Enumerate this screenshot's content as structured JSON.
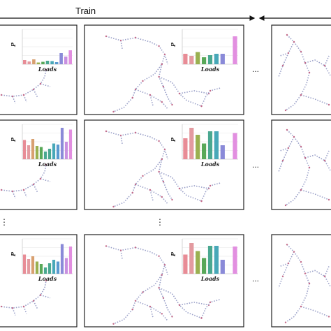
{
  "header": {
    "title": "Train"
  },
  "axis_labels": {
    "y": "P",
    "x": "Loads"
  },
  "ellipsis": "...",
  "vertical_ellipsis": "⋮",
  "colors": {
    "frame": "#222222",
    "arrow": "#111111",
    "network_edge": "#9aa0c8",
    "network_node": "#c46b8a",
    "bar_palette": [
      "#e88c96",
      "#e39aa0",
      "#d8a070",
      "#9ab050",
      "#58a858",
      "#4aa890",
      "#48a8b8",
      "#5a9ad0",
      "#8a8ad8",
      "#c890e0",
      "#e28fe0"
    ]
  },
  "panels": [
    {
      "id": "r1c1",
      "bars": [
        0.12,
        0.08,
        0.14,
        0.05,
        0.07,
        0.1,
        0.09,
        0.06,
        0.32,
        0.22,
        0.4
      ]
    },
    {
      "id": "r1c2",
      "bars": [
        0.3,
        0.24,
        0.35,
        0.2,
        0.26,
        0.3,
        0.3,
        0.0,
        0.8
      ]
    },
    {
      "id": "r1c3",
      "bars": []
    },
    {
      "id": "r2c1",
      "bars": [
        0.55,
        0.4,
        0.58,
        0.38,
        0.35,
        0.22,
        0.3,
        0.45,
        0.42,
        0.9,
        0.5,
        0.85
      ]
    },
    {
      "id": "r2c2",
      "bars": [
        0.6,
        0.9,
        0.7,
        0.45,
        0.8,
        0.8,
        0.4,
        0.0,
        0.75
      ]
    },
    {
      "id": "r2c3",
      "bars": []
    },
    {
      "id": "r3c1",
      "bars": [
        0.55,
        0.42,
        0.5,
        0.35,
        0.28,
        0.18,
        0.3,
        0.4,
        0.35,
        0.85,
        0.45,
        0.78
      ]
    },
    {
      "id": "r3c2",
      "bars": [
        0.55,
        0.88,
        0.65,
        0.45,
        0.8,
        0.8,
        0.4,
        0.0,
        0.78
      ]
    },
    {
      "id": "r3c3",
      "bars": []
    }
  ]
}
